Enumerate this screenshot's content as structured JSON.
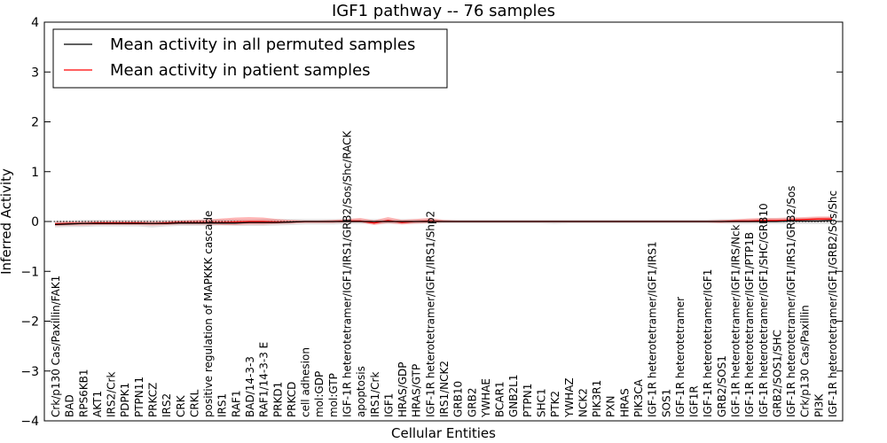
{
  "chart_data": {
    "type": "line",
    "title": "IGF1 pathway -- 76 samples",
    "xlabel": "Cellular Entities",
    "ylabel": "Inferred Activity",
    "ylim": [
      -4,
      4
    ],
    "yticks": [
      -4,
      -3,
      -2,
      -1,
      0,
      1,
      2,
      3,
      4
    ],
    "ytick_labels": [
      "−4",
      "−3",
      "−2",
      "−1",
      "0",
      "1",
      "2",
      "3",
      "4"
    ],
    "legend_location": "top-left",
    "categories": [
      "Crk/p130 Cas/Paxillin/FAK1",
      "BAD",
      "RPS6KB1",
      "AKT1",
      "IRS2/Crk",
      "PDPK1",
      "PTPN11",
      "PRKCZ",
      "IRS2",
      "CRK",
      "CRKL",
      "positive regulation of MAPKKK cascade",
      "IRS1",
      "RAF1",
      "BAD/14-3-3",
      "RAF1/14-3-3 E",
      "PRKD1",
      "PRKCD",
      "cell adhesion",
      "mol:GDP",
      "mol:GTP",
      "IGF-1R heterotetramer/IGF1/IRS1/GRB2/Sos/Shc/RACK",
      "apoptosis",
      "IRS1/Crk",
      "IGF1",
      "HRAS/GDP",
      "HRAS/GTP",
      "IGF-1R heterotetramer/IGF1/IRS1/Shp2",
      "IRS1/NCK2",
      "GRB10",
      "GRB2",
      "YWHAE",
      "BCAR1",
      "GNB2L1",
      "PTPN1",
      "SHC1",
      "PTK2",
      "YWHAZ",
      "NCK2",
      "PIK3R1",
      "PXN",
      "HRAS",
      "PIK3CA",
      "IGF-1R heterotetramer/IGF1/IRS1",
      "SOS1",
      "IGF-1R heterotetramer",
      "IGF1R",
      "IGF-1R heterotetramer/IGF1",
      "GRB2/SOS1",
      "IGF-1R heterotetramer/IGF1/IRS/Nck",
      "IGF-1R heterotetramer/IGF1/PTP1B",
      "IGF-1R heterotetramer/IGF1/SHC/GRB10",
      "GRB2/SOS1/SHC",
      "IGF-1R heterotetramer/IGF1/IRS1/GRB2/Sos",
      "Crk/p130 Cas/Paxillin",
      "PI3K",
      "IGF-1R heterotetramer/IGF1/GRB2/Sos/Shc"
    ],
    "series": [
      {
        "name": "Mean activity in all permuted samples",
        "color": "#000000",
        "values": [
          -0.06,
          -0.05,
          -0.04,
          -0.04,
          -0.04,
          -0.04,
          -0.04,
          -0.04,
          -0.04,
          -0.03,
          -0.03,
          -0.03,
          -0.03,
          -0.03,
          -0.02,
          -0.02,
          -0.02,
          -0.01,
          0.0,
          0.0,
          0.0,
          0.0,
          0.0,
          0.0,
          0.0,
          0.0,
          0.0,
          0.0,
          0.0,
          0.0,
          0.0,
          0.0,
          0.0,
          0.0,
          0.0,
          0.0,
          0.0,
          0.0,
          0.0,
          0.0,
          0.0,
          0.0,
          0.0,
          0.0,
          0.0,
          0.0,
          0.0,
          0.0,
          0.0,
          0.0,
          0.0,
          0.0,
          0.0,
          0.01,
          0.01,
          0.01,
          0.02
        ],
        "band_low": [
          -0.12,
          -0.11,
          -0.11,
          -0.1,
          -0.1,
          -0.1,
          -0.1,
          -0.12,
          -0.1,
          -0.09,
          -0.09,
          -0.09,
          -0.08,
          -0.09,
          -0.09,
          -0.09,
          -0.08,
          -0.07,
          -0.06,
          -0.06,
          -0.06,
          -0.05,
          -0.05,
          -0.05,
          -0.05,
          -0.05,
          -0.05,
          -0.04,
          -0.04,
          -0.04,
          -0.04,
          -0.04,
          -0.04,
          -0.04,
          -0.04,
          -0.04,
          -0.05,
          -0.04,
          -0.04,
          -0.04,
          -0.04,
          -0.04,
          -0.04,
          -0.04,
          -0.04,
          -0.04,
          -0.04,
          -0.04,
          -0.04,
          -0.05,
          -0.05,
          -0.05,
          -0.05,
          -0.05,
          -0.05,
          -0.05,
          -0.05
        ],
        "band_high": [
          0.02,
          0.02,
          0.03,
          0.03,
          0.03,
          0.03,
          0.03,
          0.03,
          0.03,
          0.03,
          0.03,
          0.04,
          0.04,
          0.04,
          0.04,
          0.05,
          0.05,
          0.05,
          0.05,
          0.05,
          0.05,
          0.05,
          0.05,
          0.05,
          0.05,
          0.05,
          0.05,
          0.05,
          0.04,
          0.04,
          0.04,
          0.04,
          0.04,
          0.04,
          0.04,
          0.04,
          0.04,
          0.04,
          0.04,
          0.04,
          0.04,
          0.04,
          0.04,
          0.04,
          0.04,
          0.04,
          0.04,
          0.04,
          0.05,
          0.05,
          0.05,
          0.06,
          0.06,
          0.07,
          0.07,
          0.08,
          0.09
        ]
      },
      {
        "name": "Mean activity in patient samples",
        "color": "#ff0000",
        "values": [
          -0.05,
          -0.04,
          -0.04,
          -0.03,
          -0.03,
          -0.03,
          -0.03,
          -0.04,
          -0.03,
          -0.02,
          -0.02,
          -0.02,
          -0.02,
          -0.01,
          0.0,
          0.0,
          -0.01,
          -0.01,
          0.0,
          0.0,
          0.0,
          0.01,
          0.01,
          -0.03,
          0.02,
          -0.02,
          0.0,
          0.01,
          0.0,
          0.0,
          0.0,
          0.0,
          0.0,
          0.0,
          0.0,
          0.0,
          0.0,
          0.0,
          0.0,
          0.0,
          0.0,
          0.0,
          0.0,
          0.0,
          0.0,
          0.0,
          0.0,
          0.0,
          0.0,
          0.01,
          0.01,
          0.02,
          0.02,
          0.03,
          0.04,
          0.05,
          0.05
        ],
        "band_low": [
          -0.09,
          -0.08,
          -0.08,
          -0.07,
          -0.07,
          -0.07,
          -0.07,
          -0.08,
          -0.07,
          -0.06,
          -0.06,
          -0.06,
          -0.07,
          -0.07,
          -0.06,
          -0.06,
          -0.05,
          -0.04,
          -0.03,
          -0.03,
          -0.03,
          -0.02,
          -0.02,
          -0.07,
          -0.03,
          -0.06,
          -0.04,
          -0.03,
          -0.02,
          -0.02,
          -0.02,
          -0.02,
          -0.02,
          -0.02,
          -0.02,
          -0.02,
          -0.02,
          -0.02,
          -0.02,
          -0.02,
          -0.02,
          -0.02,
          -0.02,
          -0.02,
          -0.02,
          -0.02,
          -0.02,
          -0.02,
          -0.03,
          -0.02,
          -0.02,
          -0.01,
          -0.01,
          0.0,
          0.0,
          0.01,
          0.01
        ],
        "band_high": [
          -0.01,
          0.0,
          0.0,
          0.01,
          0.01,
          0.01,
          0.01,
          0.0,
          0.01,
          0.02,
          0.03,
          0.04,
          0.06,
          0.08,
          0.09,
          0.08,
          0.05,
          0.03,
          0.02,
          0.02,
          0.03,
          0.05,
          0.07,
          0.02,
          0.09,
          0.03,
          0.05,
          0.07,
          0.03,
          0.02,
          0.02,
          0.02,
          0.02,
          0.02,
          0.02,
          0.02,
          0.02,
          0.02,
          0.02,
          0.02,
          0.02,
          0.02,
          0.02,
          0.02,
          0.02,
          0.02,
          0.02,
          0.02,
          0.03,
          0.04,
          0.06,
          0.07,
          0.07,
          0.08,
          0.09,
          0.1,
          0.1
        ]
      }
    ]
  }
}
